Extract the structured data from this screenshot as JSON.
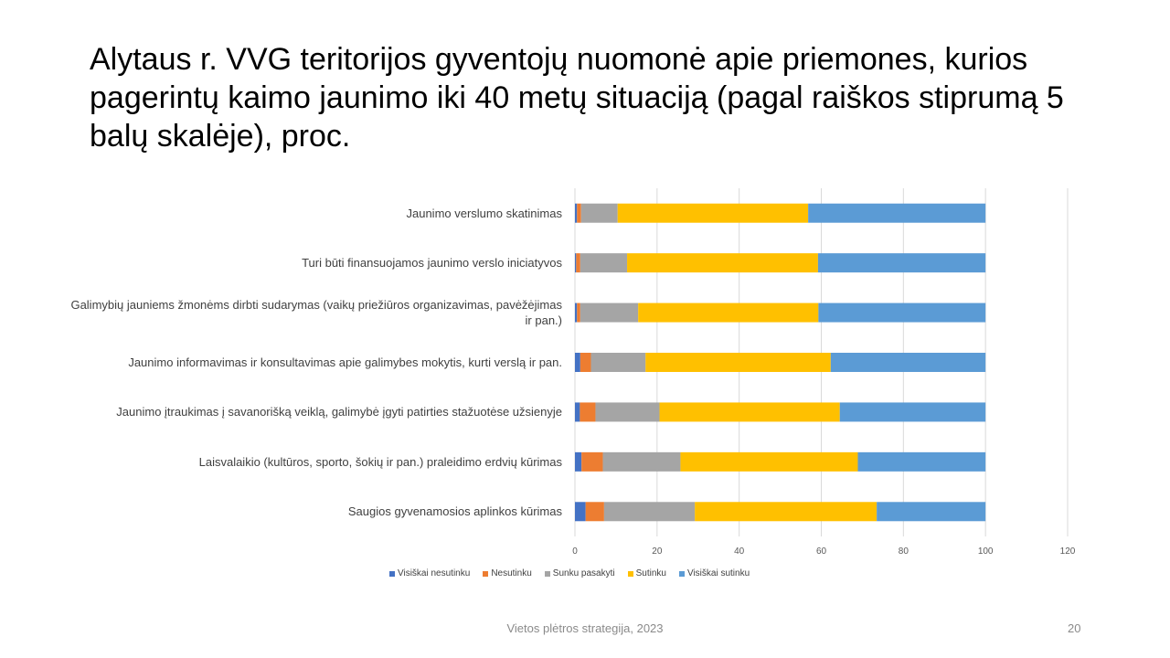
{
  "title": "Alytaus r. VVG teritorijos gyventojų nuomonė apie priemones, kurios pagerintų kaimo jaunimo iki 40 metų situaciją (pagal raiškos stiprumą 5 balų skalėje), proc.",
  "footer": "Vietos plėtros strategija, 2023",
  "page_number": "20",
  "chart_data": {
    "type": "bar",
    "orientation": "horizontal",
    "stacked": true,
    "categories": [
      "Jaunimo verslumo skatinimas",
      "Turi būti finansuojamos jaunimo verslo iniciatyvos",
      "Galimybių jauniems žmonėms dirbti sudarymas (vaikų priežiūros organizavimas, pavėžėjimas ir pan.)",
      "Jaunimo informavimas ir konsultavimas apie galimybes mokytis, kurti verslą ir pan.",
      "Jaunimo įtraukimas į savanorišką veiklą, galimybė įgyti patirties stažuotėse užsienyje",
      "Laisvalaikio (kultūros, sporto, šokių ir pan.) praleidimo erdvių kūrimas",
      "Saugios gyvenamosios aplinkos kūrimas"
    ],
    "series": [
      {
        "name": "Visiškai nesutinku",
        "color": "#4472C4",
        "values": [
          0.5,
          0.3,
          0.5,
          1.3,
          1.2,
          1.6,
          2.6
        ]
      },
      {
        "name": "Nesutinku",
        "color": "#ED7D31",
        "values": [
          1.0,
          1.0,
          0.8,
          2.6,
          3.8,
          5.2,
          4.5
        ]
      },
      {
        "name": "Sunku pasakyti",
        "color": "#A5A5A5",
        "values": [
          8.9,
          11.4,
          14.1,
          13.3,
          15.6,
          18.9,
          22.1
        ]
      },
      {
        "name": "Sutinku",
        "color": "#FFC000",
        "values": [
          46.4,
          46.5,
          43.9,
          45.1,
          43.9,
          43.2,
          44.3
        ]
      },
      {
        "name": "Visiškai sutinku",
        "color": "#5B9BD5",
        "values": [
          43.2,
          40.8,
          40.7,
          37.7,
          35.5,
          31.1,
          26.5
        ]
      }
    ],
    "xlim": [
      0,
      120
    ],
    "xticks": [
      0,
      20,
      40,
      60,
      80,
      100,
      120
    ],
    "grid": true,
    "legend_position": "bottom"
  }
}
